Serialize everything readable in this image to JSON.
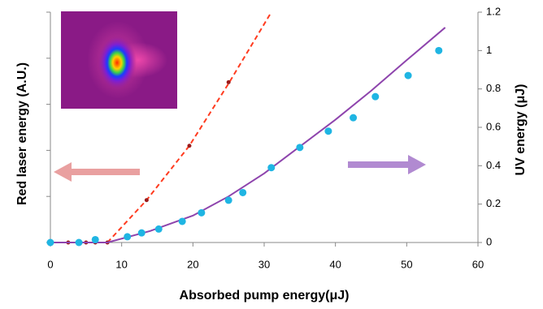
{
  "chart_data": {
    "type": "line",
    "xlabel": "Absorbed pump energy(μJ)",
    "ylabel": "Red laser energy (A.U.)",
    "y2label": "UV energy (μJ)",
    "xlim": [
      0,
      60
    ],
    "xticks": [
      0,
      10,
      20,
      30,
      40,
      50,
      60
    ],
    "ylim": [
      0,
      5
    ],
    "yticks": [
      0,
      1,
      2,
      3,
      4,
      5
    ],
    "ytick_labels": false,
    "y2lim": [
      0,
      1.2
    ],
    "y2ticks": [
      0,
      0.2,
      0.4,
      0.6,
      0.8,
      1,
      1.2
    ],
    "grid": false,
    "series": [
      {
        "color": "#ff3b1f",
        "mode": "line",
        "dash": true,
        "axis": "y",
        "x": [
          8,
          13.5,
          19.5,
          25,
          31
        ],
        "values": [
          0,
          0.92,
          2.1,
          3.45,
          5
        ]
      },
      {
        "color": "#9b1b1b",
        "mode": "markers",
        "axis": "y",
        "x": [
          0,
          2.5,
          4,
          5,
          6.3,
          8,
          13.5,
          19.5,
          25
        ],
        "values": [
          0,
          0,
          0,
          0,
          0,
          0,
          0.92,
          2.1,
          3.48
        ]
      },
      {
        "color": "#8e44ad",
        "mode": "line",
        "dash": false,
        "axis": "y2",
        "x": [
          0,
          8,
          14,
          20,
          25,
          30,
          35,
          40,
          45,
          50,
          55.4
        ],
        "values": [
          0,
          0,
          0.06,
          0.14,
          0.24,
          0.36,
          0.5,
          0.64,
          0.79,
          0.95,
          1.12
        ]
      },
      {
        "color": "#1fb5e3",
        "mode": "markers",
        "axis": "y2",
        "x": [
          0,
          4,
          6.3,
          10.8,
          12.8,
          15.2,
          18.5,
          21.2,
          25,
          27,
          31,
          35,
          39,
          42.5,
          45.6,
          50.2,
          54.5
        ],
        "values": [
          0,
          0,
          0.015,
          0.03,
          0.05,
          0.07,
          0.11,
          0.155,
          0.22,
          0.26,
          0.39,
          0.495,
          0.58,
          0.65,
          0.76,
          0.87,
          1.0
        ]
      }
    ]
  }
}
